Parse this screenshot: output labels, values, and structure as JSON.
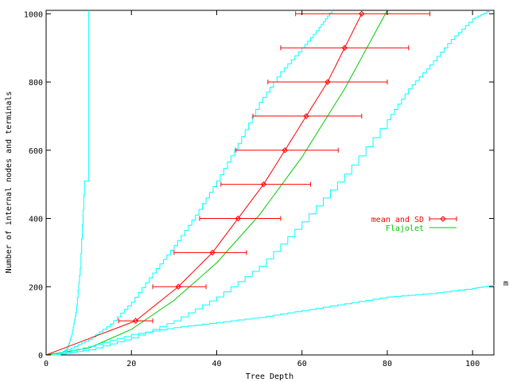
{
  "chart_data": {
    "type": "line",
    "title": "",
    "xlabel": "Tree Depth",
    "ylabel": "Number of internal nodes and terminals",
    "xlim": [
      0,
      105
    ],
    "ylim": [
      0,
      1010
    ],
    "xticks": [
      0,
      20,
      40,
      60,
      80,
      100
    ],
    "yticks": [
      0,
      200,
      400,
      600,
      800,
      1000
    ],
    "xtick_labels": [
      "0",
      "20",
      "40",
      "60",
      "80",
      "100"
    ],
    "ytick_labels": [
      "0",
      "200",
      "400",
      "600",
      "800",
      "1000"
    ],
    "grid": false,
    "legend_position": "right-middle",
    "right_edge_label": "m",
    "series": [
      {
        "name": "mean and SD",
        "kind": "errorbar",
        "color": "#ff0000",
        "x": [
          21,
          31,
          39,
          45,
          51,
          56,
          61,
          66,
          70,
          74
        ],
        "y": [
          100,
          200,
          300,
          400,
          500,
          600,
          700,
          800,
          900,
          1000
        ],
        "xerr_low": [
          17,
          25,
          30,
          36,
          41,
          44.5,
          48.5,
          52,
          55,
          58.5
        ],
        "xerr_high": [
          25,
          37.5,
          47,
          55,
          62,
          68.5,
          74,
          80,
          85,
          90
        ]
      },
      {
        "name": "Flajolet",
        "kind": "line",
        "color": "#00cc00",
        "x": [
          0,
          10,
          20,
          30,
          40,
          50,
          60,
          70,
          80
        ],
        "y": [
          0,
          20,
          75,
          160,
          270,
          410,
          580,
          780,
          1010
        ]
      },
      {
        "kind": "step",
        "color": "#00ffff",
        "x": [
          0,
          3,
          5,
          6,
          7,
          8,
          9,
          10,
          10
        ],
        "y": [
          0,
          0,
          20,
          60,
          125,
          255,
          510,
          510,
          1010
        ]
      },
      {
        "kind": "step",
        "color": "#00ffff",
        "x": [
          0,
          2,
          5,
          10,
          15,
          20,
          25,
          30,
          35,
          40,
          45,
          50,
          55,
          60,
          64,
          67
        ],
        "y": [
          0,
          0,
          15,
          45,
          90,
          155,
          240,
          320,
          410,
          510,
          620,
          740,
          830,
          900,
          960,
          1010
        ]
      },
      {
        "kind": "step",
        "color": "#00ffff",
        "x": [
          0,
          2,
          10,
          20,
          30,
          40,
          50,
          60,
          70,
          80,
          85,
          90,
          95,
          100,
          104
        ],
        "y": [
          0,
          0,
          15,
          50,
          100,
          170,
          260,
          390,
          530,
          690,
          780,
          850,
          925,
          985,
          1010
        ]
      },
      {
        "kind": "step",
        "color": "#00ffff",
        "x": [
          0,
          2,
          10,
          20,
          30,
          40,
          50,
          60,
          70,
          80,
          90,
          100,
          105
        ],
        "y": [
          0,
          0,
          25,
          60,
          80,
          95,
          110,
          130,
          150,
          170,
          180,
          195,
          205
        ]
      }
    ]
  }
}
